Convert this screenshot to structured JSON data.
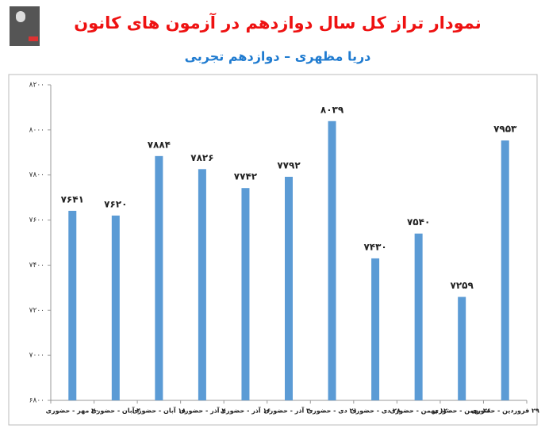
{
  "chart_data": {
    "type": "bar",
    "title": "نمودار تراز کل سال دوازدهم در آزمون های کانون",
    "subtitle": "دریا مظهری – دوازدهم تجربی",
    "categories": [
      "۲۰ مهر - حضوری",
      "۴ آبان - حضوری",
      "۱۸ آبان - حضوری",
      "۲ آذر - حضوری",
      "۱۶ آذر - حضوری",
      "۳۰ آذر - حضوری",
      "۲۱ دی - حضوری",
      "۲۸ دی - حضوری",
      "۱۲ بهمن - حضوری",
      "۲۶ بهمن - حضوری",
      "۲۹ فروردین - حضوری"
    ],
    "values": [
      7641,
      7620,
      7884,
      7826,
      7742,
      7792,
      8039,
      7430,
      7540,
      7259,
      7953
    ],
    "value_labels": [
      "۷۶۴۱",
      "۷۶۲۰",
      "۷۸۸۴",
      "۷۸۲۶",
      "۷۷۴۲",
      "۷۷۹۲",
      "۸۰۳۹",
      "۷۴۳۰",
      "۷۵۴۰",
      "۷۲۵۹",
      "۷۹۵۳"
    ],
    "color": "#5b9bd5",
    "ylim": [
      6800,
      8200
    ],
    "yticks": [
      {
        "value": 6800,
        "label": "۶۸۰۰"
      },
      {
        "value": 7000,
        "label": "۷۰۰۰"
      },
      {
        "value": 7200,
        "label": "۷۲۰۰"
      },
      {
        "value": 7400,
        "label": "۷۴۰۰"
      },
      {
        "value": 7600,
        "label": "۷۶۰۰"
      },
      {
        "value": 7800,
        "label": "۷۸۰۰"
      },
      {
        "value": 8000,
        "label": "۸۰۰۰"
      },
      {
        "value": 8200,
        "label": "۸۲۰۰"
      }
    ],
    "grid": false
  }
}
